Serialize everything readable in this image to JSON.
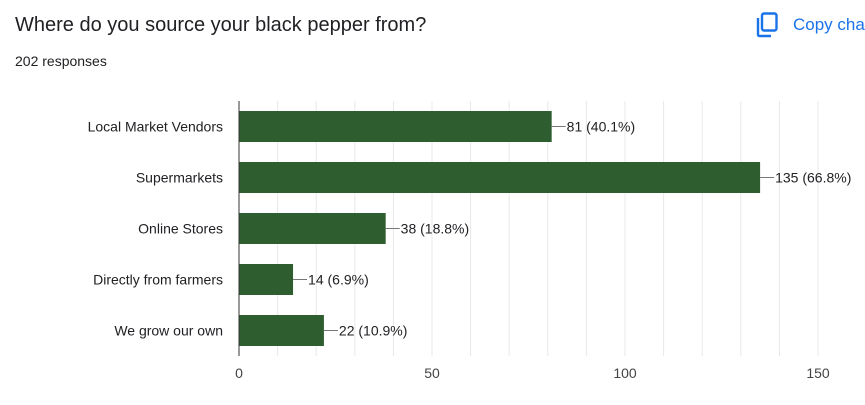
{
  "question": {
    "title": "Where do you source your black pepper from?",
    "response_count": "202 responses"
  },
  "toolbar": {
    "copy_label": "Copy cha"
  },
  "colors": {
    "bar": "#2e5e2f",
    "accent": "#1a73e8",
    "grid": "#e8e8e8",
    "axis": "#333333"
  },
  "chart_data": {
    "type": "bar",
    "orientation": "horizontal",
    "categories": [
      "Local Market Vendors",
      "Supermarkets",
      "Online Stores",
      "Directly from farmers",
      "We grow our own"
    ],
    "values": [
      81,
      135,
      38,
      14,
      22
    ],
    "data_labels": [
      "81 (40.1%)",
      "135 (66.8%)",
      "38 (18.8%)",
      "14 (6.9%)",
      "22 (10.9%)"
    ],
    "xlim": [
      0,
      150
    ],
    "xticks": [
      0,
      50,
      100,
      150
    ],
    "grid": true,
    "legend": "none"
  }
}
